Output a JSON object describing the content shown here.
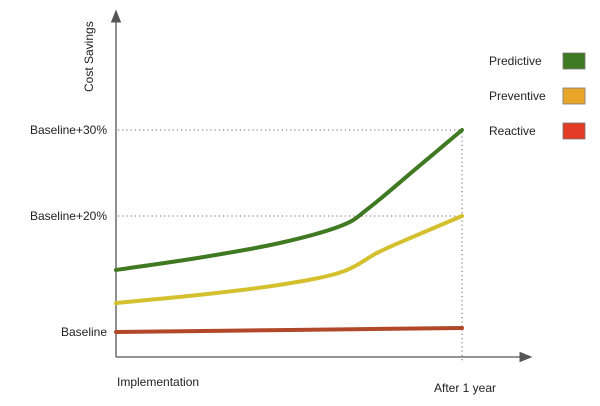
{
  "chart_data": {
    "type": "line",
    "title": "",
    "xlabel": "",
    "ylabel": "Cost Savings",
    "x_tick_labels": [
      "Implementation",
      "After 1 year"
    ],
    "x_range": [
      0,
      1
    ],
    "y_ticks": [
      {
        "value": 0,
        "label": "Baseline"
      },
      {
        "value": 20,
        "label": "Baseline+20%"
      },
      {
        "value": 30,
        "label": "Baseline+30%"
      }
    ],
    "grid": "dotted reference lines at +20% and +30% and at After 1 year",
    "legend_position": "top-right",
    "series": [
      {
        "name": "Predictive",
        "color": "#3f7a23",
        "x": [
          0,
          0.24,
          0.47,
          0.65,
          0.73,
          0.87,
          1
        ],
        "y": [
          10.7,
          12.8,
          15.3,
          18.3,
          20.9,
          25.6,
          30
        ]
      },
      {
        "name": "Preventive",
        "color": "#e8a72a",
        "line_color": "#d4c02e",
        "x": [
          0,
          0.24,
          0.47,
          0.65,
          0.76,
          0.87,
          1
        ],
        "y": [
          5.0,
          6.4,
          8.1,
          10.3,
          13.8,
          16.7,
          20
        ]
      },
      {
        "name": "Reactive",
        "color": "#e23b26",
        "line_color": "#b2482a",
        "x": [
          0,
          0.5,
          1
        ],
        "y": [
          0,
          0.35,
          0.7
        ]
      }
    ]
  }
}
